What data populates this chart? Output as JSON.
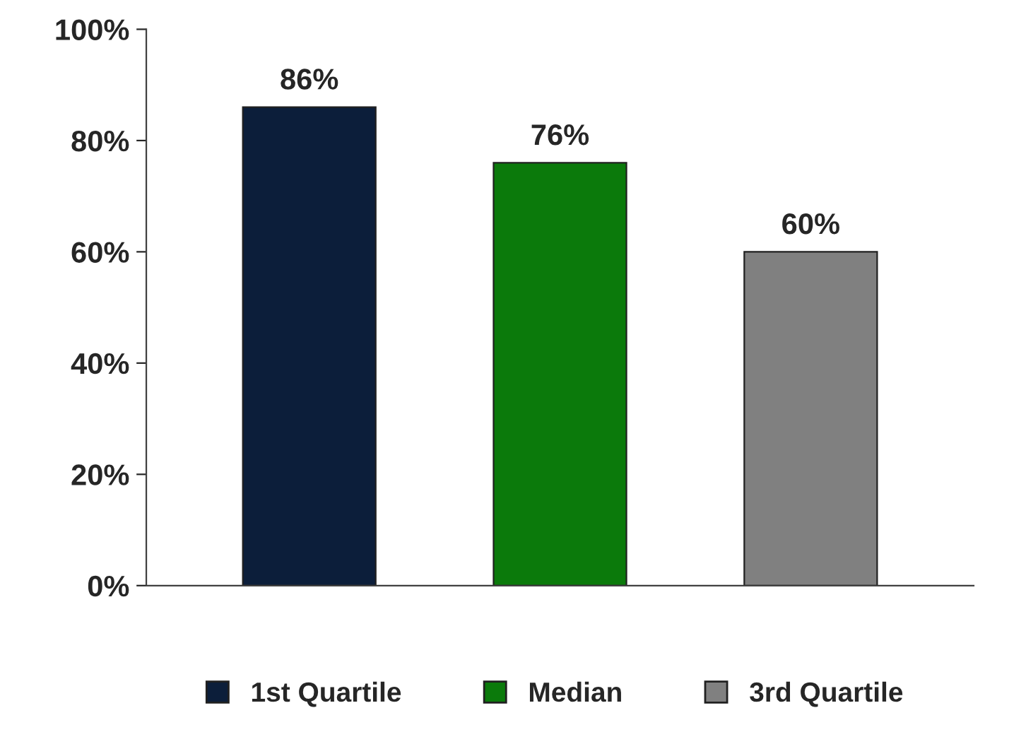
{
  "chart_data": {
    "type": "bar",
    "categories": [
      null,
      null,
      null
    ],
    "series": [
      {
        "name": "1st Quartile",
        "color": "#0c1e3a",
        "values": [
          86,
          null,
          null
        ],
        "value_labels": [
          "86%",
          null,
          null
        ]
      },
      {
        "name": "Median",
        "color": "#0b7a0b",
        "values": [
          null,
          76,
          null
        ],
        "value_labels": [
          null,
          "76%",
          null
        ]
      },
      {
        "name": "3rd Quartile",
        "color": "#808080",
        "values": [
          null,
          null,
          60
        ],
        "value_labels": [
          null,
          null,
          "60%"
        ]
      }
    ],
    "ylim": [
      0,
      100
    ],
    "yticks": [
      {
        "value": 0,
        "label": "0%"
      },
      {
        "value": 20,
        "label": "20%"
      },
      {
        "value": 40,
        "label": "40%"
      },
      {
        "value": 60,
        "label": "60%"
      },
      {
        "value": 80,
        "label": "80%"
      },
      {
        "value": 100,
        "label": "100%"
      }
    ],
    "legend": "bottom",
    "grid": false
  }
}
